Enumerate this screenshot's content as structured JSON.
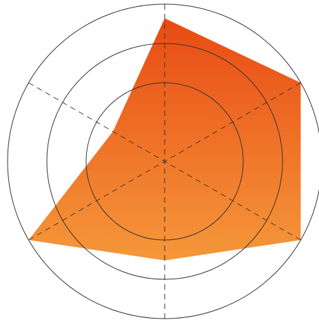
{
  "chart_data": {
    "type": "radar",
    "axes_count": 6,
    "rmax": 1.0,
    "ring_levels": [
      0.5,
      0.75,
      1.0
    ],
    "values": [
      0.91,
      1.0,
      1.0,
      0.63,
      1.0,
      0.38
    ],
    "grid": true,
    "axis_line_style": "dashed",
    "gradient": {
      "top": "#e84a14",
      "bottom": "#f5983a"
    },
    "grid_color": "#333333"
  }
}
